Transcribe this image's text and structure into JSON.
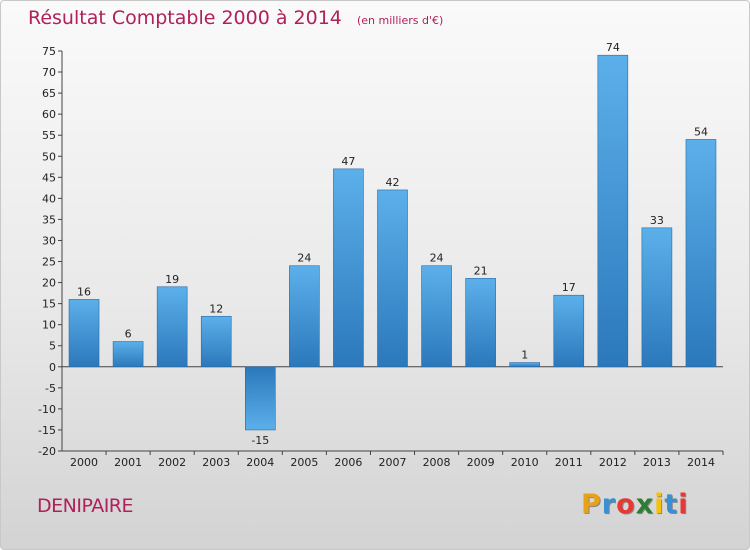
{
  "header": {
    "title": "Résultat Comptable 2000 à 2014",
    "subtitle": "(en milliers d'€)"
  },
  "footer": {
    "commune": "DENIPAIRE",
    "logo_text": "Proxiti",
    "logo_colors": [
      "#e8a21a",
      "#3a8fd0",
      "#e53935",
      "#2e7d32",
      "#f4c20d",
      "#3a8fd0",
      "#e53935"
    ]
  },
  "chart_data": {
    "type": "bar",
    "title": "Résultat Comptable 2000 à 2014",
    "subtitle": "(en milliers d'€)",
    "xlabel": "",
    "ylabel": "",
    "categories": [
      "2000",
      "2001",
      "2002",
      "2003",
      "2004",
      "2005",
      "2006",
      "2007",
      "2008",
      "2009",
      "2010",
      "2011",
      "2012",
      "2013",
      "2014"
    ],
    "values": [
      16,
      6,
      19,
      12,
      -15,
      24,
      47,
      42,
      24,
      21,
      1,
      17,
      74,
      33,
      54
    ],
    "data_labels": [
      "16",
      "6",
      "19",
      "12",
      "-15",
      "24",
      "47",
      "42",
      "24",
      "21",
      "1",
      "17",
      "74",
      "33",
      "54"
    ],
    "ylim": [
      -20,
      75
    ],
    "ytick_step": 5,
    "grid": false,
    "bar_color_top": "#5cb0ea",
    "bar_color_bottom": "#2b78bb"
  }
}
